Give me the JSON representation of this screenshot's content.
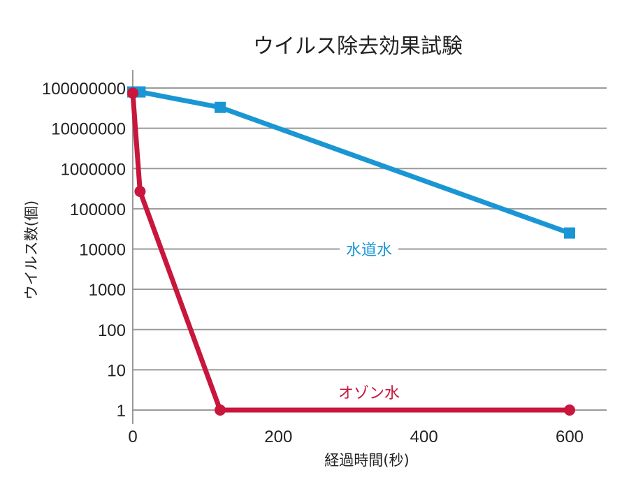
{
  "chart_data": {
    "type": "line",
    "title": "ウイルス除去効果試験",
    "xlabel": "経過時間(秒)",
    "ylabel": "ウイルス数(個)",
    "yscale": "log",
    "xlim": [
      0,
      650
    ],
    "ylim": [
      1,
      100000000
    ],
    "x_ticks": [
      "0",
      "200",
      "400",
      "600"
    ],
    "y_ticks": [
      "1",
      "10",
      "100",
      "1000",
      "10000",
      "100000",
      "1000000",
      "10000000",
      "100000000"
    ],
    "grid": "horizontal",
    "series": [
      {
        "name": "水道水",
        "color": "#1a96d4",
        "marker": "square",
        "x": [
          0,
          10,
          120,
          600
        ],
        "y": [
          80000000,
          80000000,
          33000000,
          25000
        ]
      },
      {
        "name": "オゾン水",
        "color": "#c8163c",
        "marker": "circle",
        "x": [
          0,
          10,
          120,
          600
        ],
        "y": [
          75000000,
          270000,
          1,
          1
        ]
      }
    ]
  }
}
